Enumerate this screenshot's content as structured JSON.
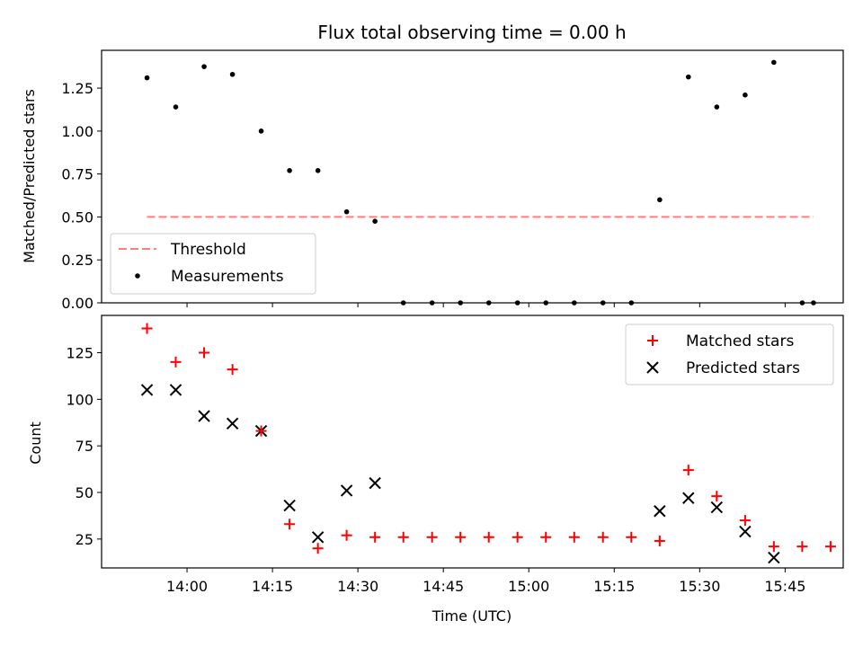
{
  "chart_data": [
    {
      "type": "scatter",
      "title": "Flux total observing time = 0.00 h",
      "xlabel": "",
      "ylabel": "Matched/Predicted stars",
      "xlim": [
        13.75,
        15.92
      ],
      "ylim": [
        0,
        1.47
      ],
      "x_ticks": [
        14.0,
        14.25,
        14.5,
        14.75,
        15.0,
        15.25,
        15.5,
        15.75
      ],
      "y_ticks": [
        0,
        0.25,
        0.5,
        0.75,
        1.0,
        1.25
      ],
      "y_tick_labels": [
        "0.00",
        "0.25",
        "0.50",
        "0.75",
        "1.00",
        "1.25"
      ],
      "legend_position": "bottom-left",
      "legend": [
        "Threshold",
        "Measurements"
      ],
      "threshold": {
        "name": "Threshold",
        "value": 0.5,
        "x_range": [
          13.883,
          15.833
        ],
        "color": "#ff7f7f"
      },
      "series": [
        {
          "name": "Measurements",
          "x": [
            13.883,
            13.967,
            14.05,
            14.133,
            14.217,
            14.3,
            14.383,
            14.467,
            14.55,
            14.633,
            14.717,
            14.8,
            14.883,
            14.967,
            15.05,
            15.133,
            15.217,
            15.3,
            15.383,
            15.467,
            15.55,
            15.633,
            15.717,
            15.8,
            15.833
          ],
          "values": [
            1.31,
            1.14,
            1.375,
            1.33,
            1.0,
            0.77,
            0.77,
            0.53,
            0.475,
            0,
            0,
            0,
            0,
            0,
            0,
            0,
            0,
            0,
            0.6,
            1.315,
            1.14,
            1.21,
            1.4,
            0,
            0
          ]
        }
      ]
    },
    {
      "type": "scatter",
      "title": "",
      "xlabel": "Time (UTC)",
      "ylabel": "Count",
      "xlim": [
        13.75,
        15.92
      ],
      "ylim": [
        9.5,
        145
      ],
      "x_ticks": [
        14.0,
        14.25,
        14.5,
        14.75,
        15.0,
        15.25,
        15.5,
        15.75
      ],
      "x_tick_labels": [
        "14:00",
        "14:15",
        "14:30",
        "14:45",
        "15:00",
        "15:15",
        "15:30",
        "15:45"
      ],
      "y_ticks": [
        25,
        50,
        75,
        100,
        125
      ],
      "y_tick_labels": [
        "25",
        "50",
        "75",
        "100",
        "125"
      ],
      "legend_position": "top-right",
      "legend": [
        "Matched stars",
        "Predicted stars"
      ],
      "series": [
        {
          "name": "Matched stars",
          "marker": "+",
          "color": "#ff0000",
          "x": [
            13.883,
            13.967,
            14.05,
            14.133,
            14.217,
            14.3,
            14.383,
            14.467,
            14.55,
            14.633,
            14.717,
            14.8,
            14.883,
            14.967,
            15.05,
            15.133,
            15.217,
            15.3,
            15.383,
            15.467,
            15.55,
            15.633,
            15.717,
            15.8,
            15.883
          ],
          "values": [
            138,
            120,
            125,
            116,
            83,
            33,
            20,
            27,
            26,
            26,
            26,
            26,
            26,
            26,
            26,
            26,
            26,
            26,
            24,
            62,
            48,
            35,
            21,
            21,
            21
          ]
        },
        {
          "name": "Predicted stars",
          "marker": "x",
          "color": "#000000",
          "x": [
            13.883,
            13.967,
            14.05,
            14.133,
            14.217,
            14.3,
            14.383,
            14.467,
            14.55,
            15.383,
            15.467,
            15.55,
            15.633,
            15.717
          ],
          "values": [
            105,
            105,
            91,
            87,
            83,
            43,
            26,
            51,
            55,
            40,
            47,
            42,
            29,
            15
          ]
        }
      ]
    }
  ]
}
